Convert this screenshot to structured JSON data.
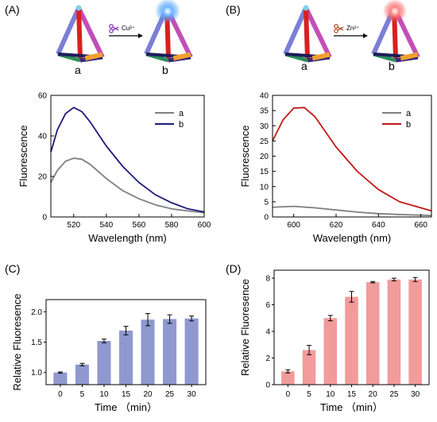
{
  "panels": {
    "A": "(A)",
    "B": "(B)",
    "C": "(C)",
    "D": "(D)"
  },
  "scheme": {
    "A": {
      "left_label": "a",
      "right_label": "b",
      "ion": "Cu²⁺",
      "glow_color": "#3b8fe8"
    },
    "B": {
      "left_label": "a",
      "right_label": "b",
      "ion": "Zn²⁺",
      "glow_color": "#ee4444"
    }
  },
  "colors": {
    "grey": "#808080",
    "navy": "#1c1c7a",
    "red": "#c01818",
    "bar_blue": "#8f98cf",
    "bar_pink": "#f29b9b"
  },
  "chart_data": [
    {
      "id": "A",
      "type": "line",
      "xlabel": "Wavelength (nm)",
      "ylabel": "Fluorescence",
      "xlim": [
        506,
        600
      ],
      "ylim": [
        0,
        60
      ],
      "xticks": [
        520,
        540,
        560,
        580,
        600
      ],
      "yticks": [
        0,
        20,
        40,
        60
      ],
      "legend": "top-right",
      "series": [
        {
          "name": "a",
          "color": "#808080",
          "x": [
            506,
            510,
            515,
            520,
            525,
            530,
            540,
            550,
            560,
            570,
            580,
            590,
            600
          ],
          "y": [
            17,
            23,
            27.5,
            29,
            28.5,
            26,
            19,
            13,
            9,
            6,
            4,
            3,
            2
          ]
        },
        {
          "name": "b",
          "color": "#1c1c7a",
          "x": [
            506,
            510,
            515,
            520,
            525,
            530,
            540,
            550,
            560,
            570,
            580,
            590,
            600
          ],
          "y": [
            32,
            43,
            51,
            54,
            52,
            47,
            35,
            25,
            17,
            11,
            7,
            4,
            2.5
          ]
        }
      ]
    },
    {
      "id": "B",
      "type": "line",
      "xlabel": "Wavelength (nm)",
      "ylabel": "Fluorescence",
      "xlim": [
        590,
        665
      ],
      "ylim": [
        0,
        40
      ],
      "xticks": [
        600,
        620,
        640,
        660
      ],
      "yticks": [
        0,
        5,
        10,
        15,
        20,
        25,
        30,
        35,
        40
      ],
      "legend": "top-right",
      "series": [
        {
          "name": "a",
          "color": "#808080",
          "x": [
            590,
            600,
            610,
            620,
            630,
            640,
            650,
            665
          ],
          "y": [
            3.2,
            3.5,
            3,
            2.3,
            1.6,
            1.1,
            0.8,
            0.5
          ]
        },
        {
          "name": "b",
          "color": "#c01818",
          "x": [
            590,
            595,
            600,
            605,
            610,
            615,
            620,
            630,
            640,
            650,
            660,
            665
          ],
          "y": [
            25,
            32,
            35.8,
            36,
            33,
            28,
            23,
            15,
            9,
            5,
            3,
            2
          ]
        }
      ]
    },
    {
      "id": "C",
      "type": "bar",
      "xlabel": "Time （min）",
      "ylabel": "Relative Fluoresence",
      "categories": [
        "0",
        "5",
        "10",
        "15",
        "20",
        "25",
        "30"
      ],
      "values": [
        1.0,
        1.13,
        1.52,
        1.69,
        1.87,
        1.88,
        1.89
      ],
      "errors": [
        0.01,
        0.02,
        0.03,
        0.07,
        0.1,
        0.07,
        0.04
      ],
      "ylim": [
        0.8,
        2.2
      ],
      "yticks": [
        1.0,
        1.5,
        2.0
      ],
      "color": "#8f98cf"
    },
    {
      "id": "D",
      "type": "bar",
      "xlabel": "Time （min）",
      "ylabel": "Relative Fluoresence",
      "categories": [
        "0",
        "5",
        "10",
        "15",
        "20",
        "25",
        "30"
      ],
      "values": [
        1.0,
        2.6,
        5.0,
        6.6,
        7.7,
        7.9,
        7.9
      ],
      "errors": [
        0.12,
        0.35,
        0.2,
        0.4,
        0.05,
        0.1,
        0.15
      ],
      "ylim": [
        0,
        8.6
      ],
      "yticks": [
        0,
        2,
        4,
        6,
        8
      ],
      "color": "#f29b9b"
    }
  ]
}
